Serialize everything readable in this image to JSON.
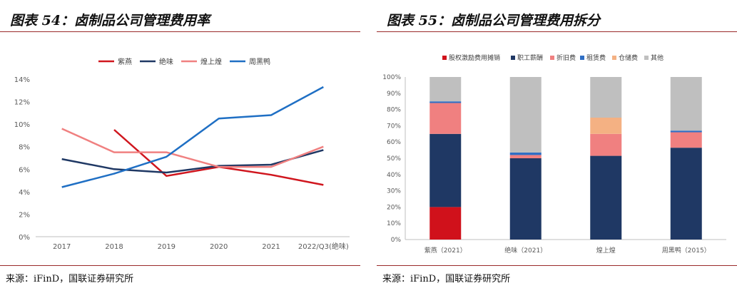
{
  "left": {
    "title": "图表 54：卤制品公司管理费用率",
    "source": "来源：iFinD，国联证券研究所",
    "chart_data": {
      "type": "line",
      "title": "卤制品公司管理费用率",
      "categories": [
        "2017",
        "2018",
        "2019",
        "2020",
        "2021",
        "2022/Q3(绝味)"
      ],
      "ylim": [
        0,
        14
      ],
      "yticks": [
        "0%",
        "2%",
        "4%",
        "6%",
        "8%",
        "10%",
        "12%",
        "14%"
      ],
      "series": [
        {
          "name": "紫燕",
          "color": "#d0161e",
          "values": [
            null,
            9.5,
            5.4,
            6.2,
            5.5,
            4.6
          ]
        },
        {
          "name": "绝味",
          "color": "#1f3864",
          "values": [
            6.9,
            6.0,
            5.7,
            6.3,
            6.4,
            7.7
          ]
        },
        {
          "name": "煌上煌",
          "color": "#f08080",
          "values": [
            9.6,
            7.5,
            7.5,
            6.2,
            6.2,
            8.0
          ]
        },
        {
          "name": "周黑鸭",
          "color": "#1f6fc4",
          "values": [
            4.4,
            5.6,
            7.1,
            10.5,
            10.8,
            13.3
          ]
        }
      ]
    }
  },
  "right": {
    "title": "图表 55：卤制品公司管理费用拆分",
    "source": "来源：iFinD，国联证券研究所",
    "chart_data": {
      "type": "bar",
      "stacked": true,
      "title": "卤制品公司管理费用拆分",
      "categories": [
        "紫燕（2021）",
        "绝味（2021）",
        "煌上煌",
        "周黑鸭（2015）"
      ],
      "ylim": [
        0,
        100
      ],
      "yticks": [
        "0%",
        "10%",
        "20%",
        "30%",
        "40%",
        "50%",
        "60%",
        "70%",
        "80%",
        "90%",
        "100%"
      ],
      "series": [
        {
          "name": "股权激励费用摊销",
          "color": "#d0111b",
          "values": [
            20,
            0,
            0,
            0
          ]
        },
        {
          "name": "职工薪酬",
          "color": "#1f3864",
          "values": [
            45,
            50,
            51.5,
            56.5
          ]
        },
        {
          "name": "折旧费",
          "color": "#f08080",
          "values": [
            19,
            2,
            13.5,
            9.5
          ]
        },
        {
          "name": "租赁费",
          "color": "#2f6ec4",
          "values": [
            1,
            1.5,
            0,
            1
          ]
        },
        {
          "name": "仓储费",
          "color": "#f4b183",
          "values": [
            0,
            0,
            10,
            0
          ]
        },
        {
          "name": "其他",
          "color": "#bfbfbf",
          "values": [
            15,
            46.5,
            25,
            33
          ]
        }
      ]
    }
  }
}
